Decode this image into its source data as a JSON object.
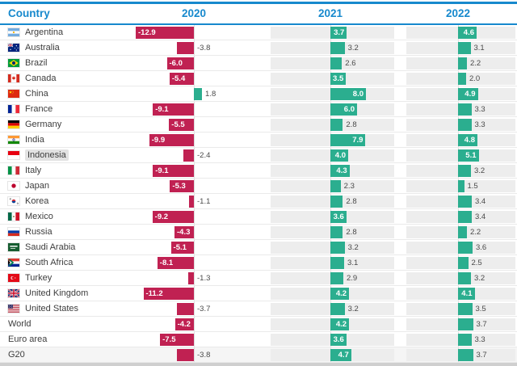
{
  "header": {
    "country_label": "Country",
    "years": [
      "2020",
      "2021",
      "2022"
    ]
  },
  "colors": {
    "accent_blue": "#1789cd",
    "negative_bar": "#c02152",
    "positive_bar": "#2bae8f",
    "track_gray": "#ededed",
    "highlight_gray": "#e2e2e2"
  },
  "chart_data": {
    "type": "bar",
    "title": "",
    "xlabel": "",
    "ylabel": "",
    "categories": [
      "Argentina",
      "Australia",
      "Brazil",
      "Canada",
      "China",
      "France",
      "Germany",
      "India",
      "Indonesia",
      "Italy",
      "Japan",
      "Korea",
      "Mexico",
      "Russia",
      "Saudi Arabia",
      "South Africa",
      "Turkey",
      "United Kingdom",
      "United States",
      "World",
      "Euro area",
      "G20"
    ],
    "series": [
      {
        "name": "2020",
        "values": [
          -12.9,
          -3.8,
          -6.0,
          -5.4,
          1.8,
          -9.1,
          -5.5,
          -9.9,
          -2.4,
          -9.1,
          -5.3,
          -1.1,
          -9.2,
          -4.3,
          -5.1,
          -8.1,
          -1.3,
          -11.2,
          -3.7,
          -4.2,
          -7.5,
          -3.8
        ]
      },
      {
        "name": "2021",
        "values": [
          3.7,
          3.2,
          2.6,
          3.5,
          8.0,
          6.0,
          2.8,
          7.9,
          4.0,
          4.3,
          2.3,
          2.8,
          3.6,
          2.8,
          3.2,
          3.1,
          2.9,
          4.2,
          3.2,
          4.2,
          3.6,
          4.7
        ]
      },
      {
        "name": "2022",
        "values": [
          4.6,
          3.1,
          2.2,
          2.0,
          4.9,
          3.3,
          3.3,
          4.8,
          5.1,
          3.2,
          1.5,
          3.4,
          3.4,
          2.2,
          3.6,
          2.5,
          3.2,
          4.1,
          3.5,
          3.7,
          3.3,
          3.7
        ]
      }
    ],
    "legend_position": "none",
    "grid": false,
    "value_axis_hidden": true
  },
  "rows": [
    {
      "country": "Argentina",
      "flag": "argentina-flag-icon",
      "label_inside": [
        true,
        true,
        true
      ],
      "name_highlighted": false,
      "row_highlighted": false
    },
    {
      "country": "Australia",
      "flag": "australia-flag-icon",
      "label_inside": [
        false,
        false,
        false
      ],
      "name_highlighted": false,
      "row_highlighted": false
    },
    {
      "country": "Brazil",
      "flag": "brazil-flag-icon",
      "label_inside": [
        true,
        false,
        false
      ],
      "name_highlighted": false,
      "row_highlighted": false
    },
    {
      "country": "Canada",
      "flag": "canada-flag-icon",
      "label_inside": [
        true,
        true,
        false
      ],
      "name_highlighted": false,
      "row_highlighted": false
    },
    {
      "country": "China",
      "flag": "china-flag-icon",
      "label_inside": [
        false,
        true,
        true
      ],
      "name_highlighted": false,
      "row_highlighted": false
    },
    {
      "country": "France",
      "flag": "france-flag-icon",
      "label_inside": [
        true,
        true,
        false
      ],
      "name_highlighted": false,
      "row_highlighted": false
    },
    {
      "country": "Germany",
      "flag": "germany-flag-icon",
      "label_inside": [
        true,
        false,
        false
      ],
      "name_highlighted": false,
      "row_highlighted": false
    },
    {
      "country": "India",
      "flag": "india-flag-icon",
      "label_inside": [
        true,
        true,
        true
      ],
      "name_highlighted": false,
      "row_highlighted": false
    },
    {
      "country": "Indonesia",
      "flag": "indonesia-flag-icon",
      "label_inside": [
        false,
        true,
        true
      ],
      "name_highlighted": true,
      "row_highlighted": false
    },
    {
      "country": "Italy",
      "flag": "italy-flag-icon",
      "label_inside": [
        true,
        true,
        false
      ],
      "name_highlighted": false,
      "row_highlighted": false
    },
    {
      "country": "Japan",
      "flag": "japan-flag-icon",
      "label_inside": [
        true,
        false,
        false
      ],
      "name_highlighted": false,
      "row_highlighted": false
    },
    {
      "country": "Korea",
      "flag": "korea-flag-icon",
      "label_inside": [
        false,
        false,
        false
      ],
      "name_highlighted": false,
      "row_highlighted": false
    },
    {
      "country": "Mexico",
      "flag": "mexico-flag-icon",
      "label_inside": [
        true,
        true,
        false
      ],
      "name_highlighted": false,
      "row_highlighted": false
    },
    {
      "country": "Russia",
      "flag": "russia-flag-icon",
      "label_inside": [
        true,
        false,
        false
      ],
      "name_highlighted": false,
      "row_highlighted": false
    },
    {
      "country": "Saudi Arabia",
      "flag": "saudi-arabia-flag-icon",
      "label_inside": [
        true,
        false,
        false
      ],
      "name_highlighted": false,
      "row_highlighted": false
    },
    {
      "country": "South Africa",
      "flag": "south-africa-flag-icon",
      "label_inside": [
        true,
        false,
        false
      ],
      "name_highlighted": false,
      "row_highlighted": false
    },
    {
      "country": "Turkey",
      "flag": "turkey-flag-icon",
      "label_inside": [
        false,
        false,
        false
      ],
      "name_highlighted": false,
      "row_highlighted": false
    },
    {
      "country": "United Kingdom",
      "flag": "united-kingdom-flag-icon",
      "label_inside": [
        true,
        true,
        true
      ],
      "name_highlighted": false,
      "row_highlighted": false
    },
    {
      "country": "United States",
      "flag": "united-states-flag-icon",
      "label_inside": [
        false,
        false,
        false
      ],
      "name_highlighted": false,
      "row_highlighted": false
    },
    {
      "country": "World",
      "flag": null,
      "label_inside": [
        true,
        true,
        false
      ],
      "name_highlighted": false,
      "row_highlighted": false
    },
    {
      "country": "Euro area",
      "flag": null,
      "label_inside": [
        true,
        true,
        false
      ],
      "name_highlighted": false,
      "row_highlighted": false
    },
    {
      "country": "G20",
      "flag": null,
      "label_inside": [
        false,
        true,
        false
      ],
      "name_highlighted": false,
      "row_highlighted": true
    }
  ]
}
